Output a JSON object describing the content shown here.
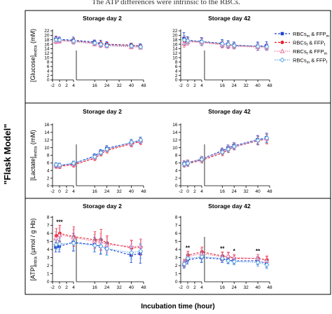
{
  "caption_fragment": "The ATP differences were intrinsic to the RBCs.",
  "side_title": "\"Flask Model\"",
  "xlabel": "Incubation time (hour)",
  "colors": {
    "dark_blue": "#1f3fd1",
    "red": "#e8202a",
    "pink": "#ee6f9f",
    "light_blue": "#5aa8e6"
  },
  "legend": [
    {
      "label": "RBCs",
      "sub": "m",
      "label2": " & FFP",
      "sub2": "m",
      "color": "#1f3fd1",
      "marker": "square-filled"
    },
    {
      "label": "RBCs",
      "sub": "f",
      "label2": " & FFP",
      "sub2": "f",
      "color": "#e8202a",
      "marker": "circle-filled"
    },
    {
      "label": "RBCs",
      "sub": "f",
      "label2": " & FFP",
      "sub2": "m",
      "color": "#ee6f9f",
      "marker": "triangle-open"
    },
    {
      "label": "RBCs",
      "sub": "m",
      "label2": " & FFP",
      "sub2": "f",
      "color": "#5aa8e6",
      "marker": "diamond-open"
    }
  ],
  "chart_data": [
    {
      "type": "line",
      "title": "Storage day 2",
      "ylabel_main": "[Glucose]",
      "ylabel_sub": "extra",
      "ylabel_unit": " (mM)",
      "ylim": [
        0,
        22
      ],
      "yticks": [
        0,
        2,
        4,
        6,
        8,
        10,
        12,
        14,
        16,
        18,
        20,
        22
      ],
      "xticks": [
        -2,
        0,
        2,
        4,
        16,
        24,
        32,
        40,
        48
      ],
      "x": [
        -1,
        0,
        4,
        16,
        20,
        24,
        40,
        46
      ],
      "series": [
        {
          "values": [
            18.3,
            18.2,
            17.8,
            17.0,
            16.3,
            16.0,
            15.6,
            15.2
          ],
          "err": [
            1.3,
            1.0,
            1.4,
            0.9,
            1.5,
            1.1,
            0.9,
            1.0
          ]
        },
        {
          "values": [
            18.1,
            17.8,
            17.5,
            16.6,
            16.2,
            15.8,
            15.5,
            15.0
          ],
          "err": [
            1.2,
            1.0,
            1.2,
            0.8,
            1.1,
            1.0,
            0.8,
            0.9
          ]
        },
        {
          "values": [
            17.3,
            17.4,
            17.2,
            16.1,
            15.6,
            15.3,
            14.8,
            14.6
          ],
          "err": [
            1.1,
            1.0,
            1.2,
            0.9,
            1.1,
            1.0,
            0.9,
            0.9
          ]
        },
        {
          "values": [
            18.0,
            17.9,
            17.4,
            16.5,
            15.9,
            15.4,
            15.2,
            14.8
          ],
          "err": [
            1.0,
            0.9,
            1.1,
            0.8,
            1.0,
            0.9,
            0.8,
            0.9
          ]
        }
      ],
      "annotations": []
    },
    {
      "type": "line",
      "title": "Storage day 42",
      "ylabel_main": "",
      "ylabel_sub": "",
      "ylabel_unit": "",
      "ylim": [
        0,
        22
      ],
      "yticks": [
        0,
        2,
        4,
        6,
        8,
        10,
        12,
        14,
        16,
        18,
        20,
        22
      ],
      "xticks": [
        -2,
        0,
        2,
        4,
        16,
        24,
        32,
        40,
        48
      ],
      "x": [
        -1,
        0,
        4,
        16,
        20,
        24,
        40,
        46
      ],
      "series": [
        {
          "values": [
            18.6,
            17.8,
            17.2,
            16.4,
            16.0,
            15.6,
            15.1,
            15.3
          ],
          "err": [
            2.6,
            1.6,
            1.8,
            1.7,
            1.6,
            1.4,
            1.9,
            1.8
          ]
        },
        {
          "values": [
            17.3,
            17.5,
            17.0,
            16.1,
            15.8,
            15.4,
            15.0,
            14.9
          ],
          "err": [
            2.0,
            1.4,
            1.6,
            1.5,
            1.5,
            1.3,
            1.6,
            1.5
          ]
        },
        {
          "values": [
            16.4,
            17.0,
            16.8,
            15.7,
            15.4,
            15.1,
            14.7,
            14.6
          ],
          "err": [
            1.8,
            1.4,
            1.5,
            1.4,
            1.4,
            1.3,
            1.5,
            1.4
          ]
        },
        {
          "values": [
            17.9,
            17.6,
            17.1,
            16.2,
            15.9,
            15.4,
            15.0,
            14.9
          ],
          "err": [
            2.1,
            1.5,
            1.6,
            1.5,
            1.4,
            1.3,
            1.6,
            1.5
          ]
        }
      ],
      "annotations": []
    },
    {
      "type": "line",
      "title": "Storage day 2",
      "ylabel_main": "[Lactate]",
      "ylabel_sub": "extra",
      "ylabel_unit": " (mM)",
      "ylim": [
        0,
        16
      ],
      "yticks": [
        0,
        2,
        4,
        6,
        8,
        10,
        12,
        14,
        16
      ],
      "xticks": [
        -2,
        0,
        2,
        4,
        16,
        24,
        32,
        40,
        48
      ],
      "x": [
        -1,
        0,
        4,
        16,
        20,
        24,
        40,
        46
      ],
      "series": [
        {
          "values": [
            5.3,
            5.3,
            5.8,
            7.8,
            8.9,
            9.8,
            11.3,
            11.9
          ],
          "err": [
            0.6,
            0.6,
            0.6,
            0.6,
            0.6,
            0.7,
            0.8,
            0.8
          ]
        },
        {
          "values": [
            5.2,
            5.1,
            5.5,
            7.2,
            8.4,
            9.3,
            11.0,
            11.6
          ],
          "err": [
            0.6,
            0.6,
            0.6,
            0.6,
            0.6,
            0.7,
            0.8,
            0.8
          ]
        },
        {
          "values": [
            5.4,
            5.2,
            5.6,
            7.4,
            8.6,
            9.5,
            11.1,
            11.7
          ],
          "err": [
            0.6,
            0.6,
            0.6,
            0.6,
            0.6,
            0.7,
            0.8,
            0.8
          ]
        },
        {
          "values": [
            5.5,
            5.4,
            5.9,
            7.6,
            8.7,
            9.6,
            11.4,
            12.0
          ],
          "err": [
            0.6,
            0.6,
            0.6,
            0.6,
            0.6,
            0.7,
            0.8,
            0.8
          ]
        }
      ],
      "annotations": []
    },
    {
      "type": "line",
      "title": "Storage day 42",
      "ylabel_main": "",
      "ylabel_sub": "",
      "ylabel_unit": "",
      "ylim": [
        0,
        16
      ],
      "yticks": [
        0,
        2,
        4,
        6,
        8,
        10,
        12,
        14,
        16
      ],
      "xticks": [
        -2,
        0,
        2,
        4,
        16,
        24,
        32,
        40,
        48
      ],
      "x": [
        -1,
        0,
        4,
        16,
        20,
        24,
        40,
        46
      ],
      "series": [
        {
          "values": [
            5.8,
            6.0,
            7.0,
            9.2,
            9.9,
            10.5,
            12.1,
            12.6
          ],
          "err": [
            0.7,
            0.7,
            0.7,
            0.7,
            0.8,
            0.8,
            1.1,
            1.2
          ]
        },
        {
          "values": [
            5.6,
            5.8,
            6.7,
            8.6,
            9.5,
            10.2,
            11.8,
            12.2
          ],
          "err": [
            0.7,
            0.7,
            0.7,
            0.7,
            0.8,
            0.8,
            1.1,
            1.2
          ]
        },
        {
          "values": [
            5.9,
            6.1,
            7.0,
            9.0,
            9.8,
            10.4,
            12.0,
            12.4
          ],
          "err": [
            0.7,
            0.7,
            0.7,
            0.7,
            0.8,
            0.8,
            1.1,
            1.2
          ]
        },
        {
          "values": [
            5.7,
            5.9,
            6.9,
            8.8,
            9.6,
            10.3,
            11.9,
            12.5
          ],
          "err": [
            0.7,
            0.7,
            0.7,
            0.7,
            0.8,
            0.8,
            1.1,
            1.2
          ]
        }
      ],
      "annotations": []
    },
    {
      "type": "line",
      "title": "Storage day 2",
      "ylabel_main": "[ATP]",
      "ylabel_sub": "intra",
      "ylabel_unit": " (µmol / g Hb)",
      "ylim": [
        0,
        8
      ],
      "yticks": [
        0,
        1,
        2,
        3,
        4,
        5,
        6,
        7,
        8
      ],
      "xticks": [
        -2,
        0,
        2,
        4,
        16,
        24,
        32,
        40,
        48
      ],
      "x": [
        -1,
        0,
        4,
        16,
        20,
        24,
        40,
        46
      ],
      "series": [
        {
          "values": [
            4.3,
            4.4,
            4.9,
            4.6,
            4.4,
            4.1,
            3.3,
            3.5
          ],
          "err": [
            0.6,
            0.7,
            1.1,
            0.9,
            1.0,
            0.8,
            0.9,
            1.2
          ]
        },
        {
          "values": [
            5.7,
            6.0,
            5.6,
            5.2,
            5.2,
            4.8,
            4.2,
            4.3
          ],
          "err": [
            0.9,
            1.0,
            1.2,
            1.0,
            1.3,
            0.9,
            0.9,
            1.0
          ]
        },
        {
          "values": [
            5.4,
            5.8,
            5.5,
            5.0,
            5.0,
            4.6,
            4.4,
            4.4
          ],
          "err": [
            0.8,
            0.9,
            1.0,
            0.9,
            1.0,
            0.9,
            0.8,
            0.9
          ]
        },
        {
          "values": [
            4.6,
            4.7,
            4.8,
            4.5,
            4.4,
            4.1,
            3.6,
            3.8
          ],
          "err": [
            0.6,
            0.7,
            0.9,
            0.8,
            0.9,
            0.8,
            0.8,
            0.9
          ]
        }
      ],
      "annotations": [
        {
          "x": 0,
          "text": "***"
        }
      ]
    },
    {
      "type": "line",
      "title": "Storage day 42",
      "ylabel_main": "",
      "ylabel_sub": "",
      "ylabel_unit": "",
      "ylim": [
        0,
        8
      ],
      "yticks": [
        0,
        1,
        2,
        3,
        4,
        5,
        6,
        7,
        8
      ],
      "xticks": [
        -2,
        0,
        2,
        4,
        16,
        24,
        32,
        40,
        48
      ],
      "x": [
        -1,
        0,
        4,
        16,
        20,
        24,
        40,
        46
      ],
      "series": [
        {
          "values": [
            2.1,
            2.7,
            3.0,
            2.8,
            2.7,
            2.6,
            2.6,
            2.3
          ],
          "err": [
            0.4,
            0.5,
            0.6,
            0.4,
            0.4,
            0.4,
            0.5,
            0.5
          ]
        },
        {
          "values": [
            2.3,
            3.3,
            3.7,
            3.2,
            3.1,
            2.9,
            2.9,
            2.7
          ],
          "err": [
            0.4,
            0.5,
            0.6,
            0.5,
            0.5,
            0.4,
            0.5,
            0.5
          ]
        },
        {
          "values": [
            2.4,
            3.1,
            3.5,
            3.1,
            3.2,
            3.0,
            2.9,
            2.6
          ],
          "err": [
            0.4,
            0.5,
            0.6,
            0.5,
            0.5,
            0.4,
            0.5,
            0.5
          ]
        },
        {
          "values": [
            2.2,
            2.9,
            3.1,
            2.9,
            2.6,
            2.5,
            2.4,
            2.1
          ],
          "err": [
            0.4,
            0.5,
            0.6,
            0.4,
            0.4,
            0.4,
            0.5,
            0.5
          ]
        }
      ],
      "annotations": [
        {
          "x": 0,
          "text": "**"
        },
        {
          "x": 16,
          "text": "**"
        },
        {
          "x": 24,
          "text": "*"
        },
        {
          "x": 40,
          "text": "**"
        }
      ]
    }
  ]
}
